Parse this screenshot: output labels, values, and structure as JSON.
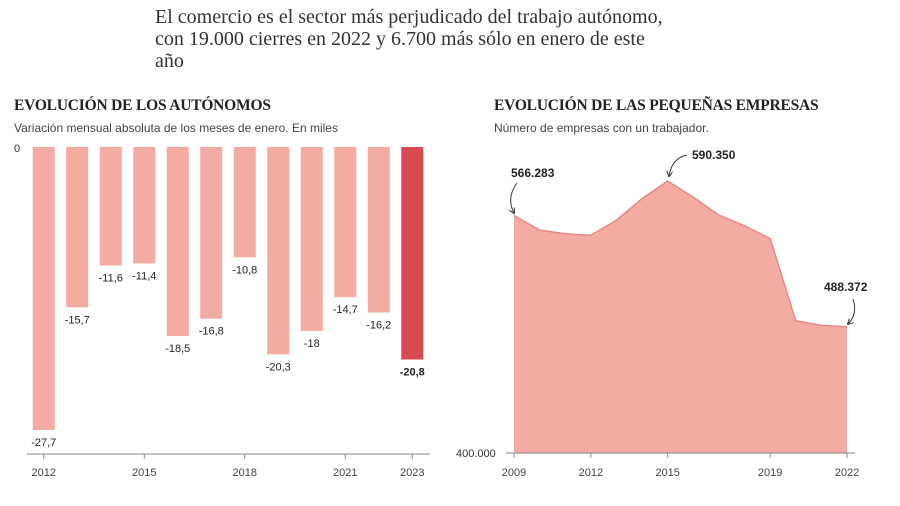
{
  "headline": "El comercio es el sector más perjudicado del trabajo autónomo, con 19.000 cierres en 2022 y 6.700 más sólo en enero de este año",
  "colors": {
    "bar": "#f4aca2",
    "bar_highlight": "#d94a52",
    "area": "#f4aca2",
    "area_line": "#e48a84",
    "axis": "#555555"
  },
  "chart_data": [
    {
      "type": "bar",
      "title": "EVOLUCIÓN DE LOS AUTÓNOMOS",
      "subtitle": "Variación mensual absoluta de los meses de enero. En miles",
      "categories": [
        "2012",
        "2013",
        "2014",
        "2015",
        "2016",
        "2017",
        "2018",
        "2019",
        "2020",
        "2021",
        "2022",
        "2023"
      ],
      "values": [
        -27.7,
        -15.7,
        -11.6,
        -11.4,
        -18.5,
        -16.8,
        -10.8,
        -20.3,
        -18,
        -14.7,
        -16.2,
        -20.8
      ],
      "value_labels": [
        "-27,7",
        "-15,7",
        "-11,6",
        "-11,4",
        "-18,5",
        "-16,8",
        "-10,8",
        "-20,3",
        "-18",
        "-14,7",
        "-16,2",
        "-20,8"
      ],
      "highlight_index": 11,
      "x_tick_labels": [
        "2012",
        "2015",
        "2018",
        "2021",
        "2023"
      ],
      "x_tick_index": [
        0,
        3,
        6,
        9,
        11
      ],
      "y_tick_label": "0",
      "ylim": [
        -30,
        0
      ]
    },
    {
      "type": "area",
      "title": "EVOLUCIÓN DE LAS PEQUEÑAS EMPRESAS",
      "subtitle": "Número de empresas con un trabajador.",
      "x": [
        2009,
        2010,
        2011,
        2012,
        2013,
        2014,
        2015,
        2016,
        2017,
        2018,
        2019,
        2020,
        2021,
        2022
      ],
      "values": [
        566283,
        556000,
        553500,
        552300,
        563000,
        578000,
        590350,
        579000,
        566500,
        559000,
        550000,
        492500,
        489300,
        488372
      ],
      "x_tick_labels": [
        "2009",
        "2012",
        "2015",
        "2019",
        "2022"
      ],
      "x_tick_values": [
        2009,
        2012,
        2015,
        2019,
        2022
      ],
      "y_tick_label": "400.000",
      "ylim": [
        400000,
        610000
      ],
      "annotations": [
        {
          "label": "566.283",
          "x": 2009
        },
        {
          "label": "590.350",
          "x": 2015
        },
        {
          "label": "488.372",
          "x": 2022
        }
      ]
    }
  ]
}
